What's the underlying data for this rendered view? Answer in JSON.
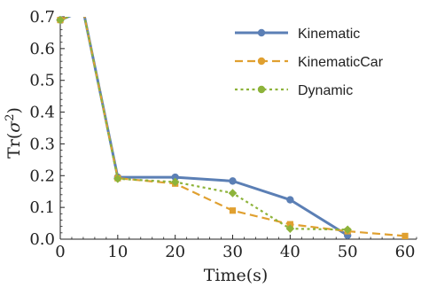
{
  "chart_data": {
    "type": "line",
    "xlabel": "Time(s)",
    "ylabel_base": "Tr(",
    "ylabel_sigma": "σ",
    "ylabel_sup": "2",
    "ylabel_close": ")",
    "xlim": [
      0,
      62
    ],
    "ylim": [
      0,
      0.7
    ],
    "xticks": [
      0,
      10,
      20,
      30,
      40,
      50,
      60
    ],
    "yticks": [
      0.0,
      0.1,
      0.2,
      0.3,
      0.4,
      0.5,
      0.6,
      0.7
    ],
    "xtick_labels": [
      "0",
      "10",
      "20",
      "30",
      "40",
      "50",
      "60"
    ],
    "ytick_labels": [
      "0.0",
      "0.1",
      "0.2",
      "0.3",
      "0.4",
      "0.5",
      "0.6",
      "0.7"
    ],
    "legend_position": "top-right",
    "series": [
      {
        "name": "Kinematic",
        "color": "#5b7fb5",
        "style": "solid",
        "marker": "circle",
        "x": [
          0,
          10,
          20,
          30,
          40,
          50
        ],
        "y": [
          0.69,
          0.195,
          0.195,
          0.183,
          0.124,
          0.012
        ],
        "line_start": [
          [
            0,
            0.69
          ],
          [
            4,
            0.72
          ]
        ],
        "legend_marker": "circle"
      },
      {
        "name": "KinematicCar",
        "color": "#e0a030",
        "style": "dashed",
        "marker": "square",
        "x": [
          0,
          10,
          20,
          30,
          40,
          50,
          60
        ],
        "y": [
          0.69,
          0.192,
          0.175,
          0.09,
          0.047,
          0.025,
          0.01
        ],
        "legend_marker": "circle"
      },
      {
        "name": "Dynamic",
        "color": "#8db33a",
        "style": "dotted",
        "marker": "diamond",
        "x": [
          0,
          10,
          20,
          30,
          40,
          50
        ],
        "y": [
          0.69,
          0.19,
          0.18,
          0.145,
          0.033,
          0.03
        ],
        "legend_marker": "circle"
      }
    ]
  }
}
